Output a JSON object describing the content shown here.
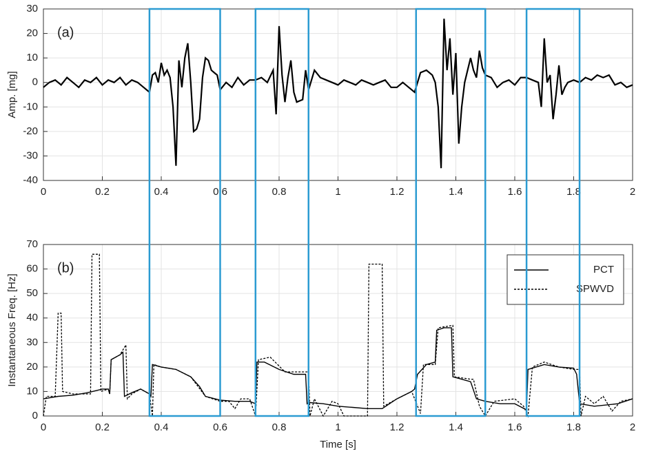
{
  "chart_data": [
    {
      "type": "line",
      "annotation": "(a)",
      "ylabel": "Amp. [mg]",
      "grid": true,
      "xlim": [
        0,
        2
      ],
      "xticks": [
        0,
        0.2,
        0.4,
        0.6,
        0.8,
        1,
        1.2,
        1.4,
        1.6,
        1.8,
        2
      ],
      "ylim": [
        -40,
        30
      ],
      "yticks": [
        -40,
        -30,
        -20,
        -10,
        0,
        10,
        20,
        30
      ],
      "highlight_spans": [
        [
          0.36,
          0.6
        ],
        [
          0.72,
          0.9
        ],
        [
          1.265,
          1.5
        ],
        [
          1.64,
          1.82
        ]
      ],
      "highlight_color": "#2b9bd2",
      "series": [
        {
          "color": "#000000",
          "style": "solid",
          "x": [
            0,
            0.02,
            0.04,
            0.06,
            0.08,
            0.1,
            0.12,
            0.14,
            0.16,
            0.18,
            0.2,
            0.22,
            0.24,
            0.26,
            0.28,
            0.3,
            0.32,
            0.34,
            0.36,
            0.37,
            0.38,
            0.39,
            0.4,
            0.41,
            0.42,
            0.43,
            0.44,
            0.45,
            0.46,
            0.47,
            0.48,
            0.49,
            0.5,
            0.51,
            0.52,
            0.53,
            0.54,
            0.55,
            0.56,
            0.57,
            0.58,
            0.59,
            0.6,
            0.62,
            0.64,
            0.66,
            0.68,
            0.7,
            0.72,
            0.74,
            0.76,
            0.78,
            0.79,
            0.8,
            0.81,
            0.82,
            0.83,
            0.84,
            0.85,
            0.86,
            0.88,
            0.89,
            0.9,
            0.92,
            0.94,
            0.96,
            0.98,
            1,
            1.02,
            1.04,
            1.06,
            1.08,
            1.1,
            1.12,
            1.14,
            1.16,
            1.18,
            1.2,
            1.22,
            1.24,
            1.26,
            1.28,
            1.3,
            1.32,
            1.33,
            1.34,
            1.35,
            1.36,
            1.37,
            1.38,
            1.39,
            1.4,
            1.41,
            1.42,
            1.43,
            1.44,
            1.45,
            1.46,
            1.47,
            1.48,
            1.49,
            1.5,
            1.52,
            1.54,
            1.56,
            1.58,
            1.6,
            1.62,
            1.64,
            1.66,
            1.68,
            1.69,
            1.7,
            1.71,
            1.72,
            1.73,
            1.74,
            1.75,
            1.76,
            1.77,
            1.78,
            1.8,
            1.82,
            1.84,
            1.86,
            1.88,
            1.9,
            1.92,
            1.94,
            1.96,
            1.98,
            2
          ],
          "values": [
            -2,
            0,
            1,
            -1,
            2,
            0,
            -2,
            1,
            0,
            2,
            -1,
            1,
            0,
            2,
            -1,
            1,
            0,
            -2,
            -4,
            3,
            4,
            0,
            8,
            3,
            5,
            2,
            -10,
            -34,
            9,
            -2,
            10,
            16,
            0,
            -20,
            -19,
            -15,
            2,
            10,
            9,
            5,
            4,
            3,
            -3,
            0,
            -2,
            2,
            -1,
            1,
            1,
            2,
            0,
            5,
            -13,
            23,
            3,
            -8,
            2,
            9,
            -4,
            -8,
            -7,
            5,
            -3,
            5,
            2,
            1,
            0,
            -1,
            1,
            0,
            -1,
            1,
            0,
            -1,
            0,
            1,
            -2,
            -2,
            0,
            -2,
            -4,
            4,
            5,
            3,
            0,
            -10,
            -35,
            26,
            5,
            18,
            -5,
            12,
            -25,
            -10,
            0,
            5,
            10,
            5,
            2,
            13,
            6,
            3,
            2,
            -2,
            0,
            1,
            -1,
            2,
            2,
            1,
            0,
            -10,
            18,
            0,
            3,
            -15,
            -5,
            7,
            -5,
            -2,
            0,
            1,
            0,
            2,
            1,
            3,
            2,
            3,
            -1,
            0,
            -2,
            -1
          ]
        }
      ]
    },
    {
      "type": "line",
      "annotation": "(b)",
      "ylabel": "Instantaneous Freq. [Hz]",
      "xlabel": "Time [s]",
      "grid": true,
      "legend": "northeast",
      "xlim": [
        0,
        2
      ],
      "xticks": [
        0,
        0.2,
        0.4,
        0.6,
        0.8,
        1,
        1.2,
        1.4,
        1.6,
        1.8,
        2
      ],
      "ylim": [
        0,
        70
      ],
      "yticks": [
        0,
        10,
        20,
        30,
        40,
        50,
        60,
        70
      ],
      "series": [
        {
          "name": "PCT",
          "color": "#000000",
          "style": "solid",
          "x": [
            0,
            0.05,
            0.1,
            0.15,
            0.2,
            0.22,
            0.225,
            0.23,
            0.26,
            0.27,
            0.275,
            0.3,
            0.33,
            0.36,
            0.365,
            0.37,
            0.4,
            0.45,
            0.5,
            0.53,
            0.55,
            0.6,
            0.65,
            0.7,
            0.72,
            0.725,
            0.75,
            0.8,
            0.85,
            0.89,
            0.895,
            0.9,
            0.95,
            1,
            1.05,
            1.1,
            1.15,
            1.2,
            1.25,
            1.26,
            1.27,
            1.3,
            1.33,
            1.335,
            1.36,
            1.385,
            1.39,
            1.45,
            1.47,
            1.5,
            1.55,
            1.6,
            1.64,
            1.645,
            1.7,
            1.75,
            1.8,
            1.81,
            1.82,
            1.87,
            1.95,
            2
          ],
          "values": [
            7,
            8,
            8.5,
            9.5,
            11,
            11,
            9,
            23,
            25,
            26,
            8,
            9.5,
            11,
            9,
            8,
            21,
            20,
            19,
            16,
            12,
            8,
            6.5,
            6,
            6,
            5,
            22,
            22,
            19,
            17,
            17,
            5,
            5.5,
            5,
            4,
            3.5,
            3,
            3,
            7,
            10,
            11,
            17,
            21,
            22,
            35,
            36,
            36,
            16,
            14,
            7,
            6,
            5,
            5,
            2.5,
            19,
            21,
            20,
            19.5,
            17,
            5,
            4,
            5,
            7
          ]
        },
        {
          "name": "SPWVD",
          "color": "#000000",
          "style": "dashed",
          "x": [
            0,
            0.01,
            0.04,
            0.05,
            0.06,
            0.065,
            0.1,
            0.13,
            0.16,
            0.165,
            0.19,
            0.195,
            0.22,
            0.225,
            0.23,
            0.26,
            0.28,
            0.285,
            0.3,
            0.33,
            0.36,
            0.37,
            0.375,
            0.4,
            0.45,
            0.5,
            0.55,
            0.6,
            0.63,
            0.65,
            0.67,
            0.7,
            0.72,
            0.73,
            0.77,
            0.82,
            0.85,
            0.9,
            0.905,
            0.92,
            0.95,
            0.98,
            1,
            1.02,
            1.1,
            1.105,
            1.15,
            1.155,
            1.2,
            1.25,
            1.28,
            1.29,
            1.33,
            1.34,
            1.39,
            1.395,
            1.45,
            1.46,
            1.48,
            1.5,
            1.53,
            1.6,
            1.63,
            1.645,
            1.66,
            1.7,
            1.75,
            1.8,
            1.82,
            1.825,
            1.84,
            1.87,
            1.9,
            1.93,
            1.96,
            2
          ],
          "values": [
            0,
            8,
            8,
            42,
            42,
            10,
            9,
            9,
            9,
            66,
            66,
            10,
            11,
            9,
            23,
            25,
            29,
            7,
            9,
            11,
            9,
            0,
            21,
            20,
            19,
            16,
            8,
            6,
            6,
            3,
            7,
            7,
            0,
            23,
            24,
            18,
            18,
            18,
            0,
            7,
            0,
            6,
            5,
            0,
            0,
            62,
            62,
            4,
            7,
            10,
            1,
            21,
            21,
            36,
            37,
            16,
            15,
            15,
            4,
            0,
            6,
            7,
            4,
            0,
            20,
            22,
            20,
            19,
            19,
            0,
            8,
            5,
            8,
            2,
            6,
            7
          ]
        }
      ]
    }
  ]
}
